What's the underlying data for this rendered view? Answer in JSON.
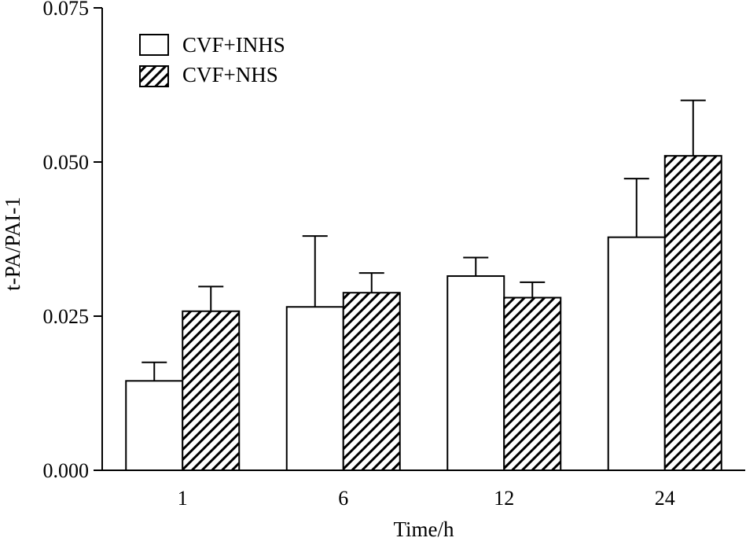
{
  "chart_data": {
    "type": "bar",
    "title": "",
    "xlabel": "Time/h",
    "ylabel": "t-PA/PAI-1",
    "categories": [
      "1",
      "6",
      "12",
      "24"
    ],
    "ylim": [
      0,
      0.075
    ],
    "yticks": [
      "0.000",
      "0.025",
      "0.050",
      "0.075"
    ],
    "ytick_values": [
      0,
      0.025,
      0.05,
      0.075
    ],
    "legend_position": "top-left",
    "series": [
      {
        "name": "CVF+INHS",
        "fill": "open",
        "values": [
          0.0145,
          0.0265,
          0.0315,
          0.0378
        ],
        "errors": [
          0.003,
          0.0115,
          0.003,
          0.0095
        ]
      },
      {
        "name": "CVF+NHS",
        "fill": "hatched",
        "values": [
          0.0258,
          0.0288,
          0.028,
          0.051
        ],
        "errors": [
          0.004,
          0.0032,
          0.0025,
          0.009
        ]
      }
    ],
    "colors": {
      "stroke": "#000000",
      "open_fill": "#ffffff",
      "hatch": "#000000"
    }
  }
}
